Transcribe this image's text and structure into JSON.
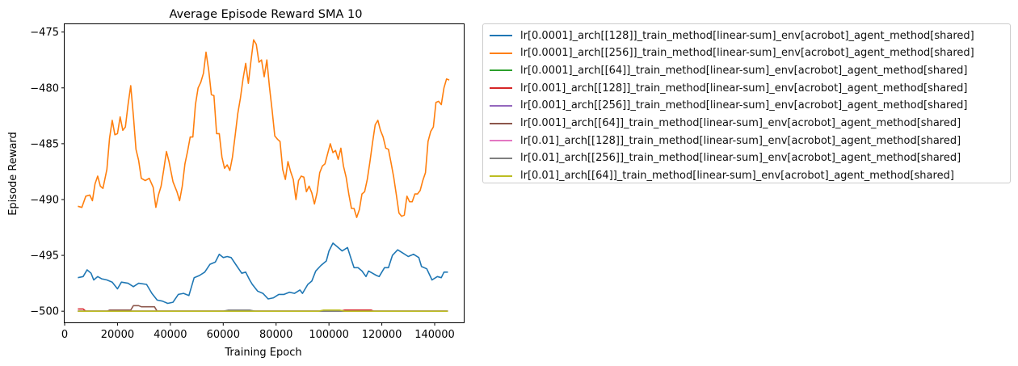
{
  "chart_data": {
    "type": "line",
    "title": "Average Episode Reward SMA 10",
    "xlabel": "Training Epoch",
    "ylabel": "Episode Reward",
    "xlim": [
      0,
      151000
    ],
    "ylim": [
      -501.0,
      -474.3
    ],
    "xticks": [
      0,
      20000,
      40000,
      60000,
      80000,
      100000,
      120000,
      140000
    ],
    "yticks": [
      -500,
      -495,
      -490,
      -485,
      -480,
      -475
    ],
    "grid": false,
    "legend_position": "outside-right-top",
    "series": [
      {
        "name": "lr[0.0001]_arch[[128]]_train_method[linear-sum]_env[acrobot]_agent_method[shared]",
        "color": "#1f77b4",
        "points": [
          [
            5000,
            -497
          ],
          [
            7000,
            -496.9
          ],
          [
            8500,
            -496.3
          ],
          [
            10000,
            -496.6
          ],
          [
            11000,
            -497.2
          ],
          [
            12500,
            -496.9
          ],
          [
            14000,
            -497.1
          ],
          [
            16000,
            -497.2
          ],
          [
            18000,
            -497.4
          ],
          [
            20000,
            -498
          ],
          [
            21500,
            -497.4
          ],
          [
            24000,
            -497.5
          ],
          [
            26000,
            -497.8
          ],
          [
            28000,
            -497.5
          ],
          [
            31000,
            -497.6
          ],
          [
            33000,
            -498.4
          ],
          [
            35000,
            -499
          ],
          [
            37000,
            -499.1
          ],
          [
            39000,
            -499.3
          ],
          [
            41000,
            -499.2
          ],
          [
            43000,
            -498.5
          ],
          [
            45000,
            -498.4
          ],
          [
            47000,
            -498.6
          ],
          [
            49000,
            -497
          ],
          [
            51000,
            -496.8
          ],
          [
            53000,
            -496.5
          ],
          [
            55000,
            -495.8
          ],
          [
            57000,
            -495.6
          ],
          [
            58500,
            -494.9
          ],
          [
            60000,
            -495.2
          ],
          [
            61500,
            -495.1
          ],
          [
            63000,
            -495.2
          ],
          [
            65000,
            -495.9
          ],
          [
            67000,
            -496.6
          ],
          [
            68500,
            -496.5
          ],
          [
            70000,
            -497.2
          ],
          [
            71000,
            -497.6
          ],
          [
            73000,
            -498.2
          ],
          [
            75000,
            -498.4
          ],
          [
            77000,
            -498.9
          ],
          [
            79000,
            -498.8
          ],
          [
            81000,
            -498.5
          ],
          [
            83000,
            -498.5
          ],
          [
            85000,
            -498.3
          ],
          [
            87000,
            -498.4
          ],
          [
            89000,
            -498.1
          ],
          [
            90000,
            -498.4
          ],
          [
            92000,
            -497.6
          ],
          [
            93500,
            -497.3
          ],
          [
            95000,
            -496.4
          ],
          [
            97000,
            -495.9
          ],
          [
            99000,
            -495.5
          ],
          [
            100000,
            -494.6
          ],
          [
            101500,
            -493.9
          ],
          [
            103000,
            -494.2
          ],
          [
            105000,
            -494.6
          ],
          [
            107000,
            -494.3
          ],
          [
            108500,
            -495.4
          ],
          [
            109500,
            -496.1
          ],
          [
            111000,
            -496.1
          ],
          [
            112500,
            -496.4
          ],
          [
            114000,
            -496.9
          ],
          [
            115000,
            -496.4
          ],
          [
            116500,
            -496.6
          ],
          [
            118000,
            -496.8
          ],
          [
            119000,
            -496.9
          ],
          [
            121000,
            -496.1
          ],
          [
            122500,
            -496.1
          ],
          [
            124000,
            -495
          ],
          [
            126000,
            -494.5
          ],
          [
            128000,
            -494.8
          ],
          [
            130000,
            -495.1
          ],
          [
            132000,
            -494.9
          ],
          [
            134000,
            -495.2
          ],
          [
            135000,
            -496
          ],
          [
            137000,
            -496.2
          ],
          [
            139000,
            -497.2
          ],
          [
            141000,
            -496.9
          ],
          [
            142500,
            -497
          ],
          [
            143500,
            -496.5
          ],
          [
            145000,
            -496.5
          ]
        ]
      },
      {
        "name": "lr[0.0001]_arch[[256]]_train_method[linear-sum]_env[acrobot]_agent_method[shared]",
        "color": "#ff7f0e",
        "points": [
          [
            5000,
            -490.6
          ],
          [
            6500,
            -490.7
          ],
          [
            8000,
            -489.7
          ],
          [
            9500,
            -489.6
          ],
          [
            10500,
            -490.1
          ],
          [
            11500,
            -488.6
          ],
          [
            12500,
            -487.9
          ],
          [
            13500,
            -488.8
          ],
          [
            14500,
            -489
          ],
          [
            16000,
            -487.3
          ],
          [
            17000,
            -484.5
          ],
          [
            18000,
            -482.9
          ],
          [
            19000,
            -484.2
          ],
          [
            20000,
            -484.1
          ],
          [
            21000,
            -482.6
          ],
          [
            22000,
            -483.8
          ],
          [
            23000,
            -483.5
          ],
          [
            24000,
            -481.5
          ],
          [
            25000,
            -479.8
          ],
          [
            26000,
            -482.5
          ],
          [
            27000,
            -485.5
          ],
          [
            28000,
            -486.5
          ],
          [
            29000,
            -488.1
          ],
          [
            30500,
            -488.3
          ],
          [
            32000,
            -488.1
          ],
          [
            33500,
            -488.9
          ],
          [
            34500,
            -490.7
          ],
          [
            35500,
            -489.6
          ],
          [
            36500,
            -488.8
          ],
          [
            37500,
            -487.3
          ],
          [
            38500,
            -485.7
          ],
          [
            39500,
            -486.6
          ],
          [
            41000,
            -488.4
          ],
          [
            42500,
            -489.3
          ],
          [
            43500,
            -490.1
          ],
          [
            44500,
            -488.8
          ],
          [
            45500,
            -486.8
          ],
          [
            46500,
            -485.7
          ],
          [
            47500,
            -484.4
          ],
          [
            48500,
            -484.4
          ],
          [
            49500,
            -481.5
          ],
          [
            50500,
            -480.0
          ],
          [
            51500,
            -479.5
          ],
          [
            52500,
            -478.7
          ],
          [
            53500,
            -476.8
          ],
          [
            54500,
            -478.4
          ],
          [
            55500,
            -480.6
          ],
          [
            56500,
            -480.7
          ],
          [
            57500,
            -484.1
          ],
          [
            58500,
            -484.1
          ],
          [
            59500,
            -486.2
          ],
          [
            60500,
            -487.2
          ],
          [
            61500,
            -486.9
          ],
          [
            62500,
            -487.4
          ],
          [
            63500,
            -486.2
          ],
          [
            64500,
            -484.3
          ],
          [
            65500,
            -482.3
          ],
          [
            66500,
            -480.9
          ],
          [
            67500,
            -479.2
          ],
          [
            68500,
            -477.8
          ],
          [
            69500,
            -479.6
          ],
          [
            70500,
            -477.6
          ],
          [
            71500,
            -475.7
          ],
          [
            72500,
            -476.1
          ],
          [
            73500,
            -477.7
          ],
          [
            74500,
            -477.5
          ],
          [
            75500,
            -479.0
          ],
          [
            76500,
            -477.5
          ],
          [
            77500,
            -479.9
          ],
          [
            78500,
            -482.0
          ],
          [
            79500,
            -484.3
          ],
          [
            80500,
            -484.6
          ],
          [
            81500,
            -484.8
          ],
          [
            82500,
            -487.3
          ],
          [
            83500,
            -488.2
          ],
          [
            84500,
            -486.6
          ],
          [
            85500,
            -487.5
          ],
          [
            86500,
            -488.2
          ],
          [
            87500,
            -490.0
          ],
          [
            88500,
            -488.3
          ],
          [
            89500,
            -487.9
          ],
          [
            90500,
            -488.0
          ],
          [
            91500,
            -489.3
          ],
          [
            92500,
            -488.8
          ],
          [
            93500,
            -489.4
          ],
          [
            94500,
            -490.4
          ],
          [
            95500,
            -489.4
          ],
          [
            96500,
            -487.6
          ],
          [
            97500,
            -487.0
          ],
          [
            98500,
            -486.8
          ],
          [
            99500,
            -485.9
          ],
          [
            100500,
            -485.0
          ],
          [
            101500,
            -485.8
          ],
          [
            102500,
            -485.6
          ],
          [
            103500,
            -486.4
          ],
          [
            104500,
            -485.4
          ],
          [
            105500,
            -487.0
          ],
          [
            106500,
            -488.0
          ],
          [
            107500,
            -489.5
          ],
          [
            108500,
            -490.8
          ],
          [
            109500,
            -490.8
          ],
          [
            110500,
            -491.6
          ],
          [
            111500,
            -490.9
          ],
          [
            112500,
            -489.5
          ],
          [
            113500,
            -489.3
          ],
          [
            114500,
            -488.2
          ],
          [
            115500,
            -486.6
          ],
          [
            116500,
            -484.9
          ],
          [
            117500,
            -483.3
          ],
          [
            118500,
            -482.9
          ],
          [
            119500,
            -483.8
          ],
          [
            120500,
            -484.4
          ],
          [
            121500,
            -485.4
          ],
          [
            122500,
            -485.5
          ],
          [
            123500,
            -486.7
          ],
          [
            124500,
            -488.0
          ],
          [
            125500,
            -489.6
          ],
          [
            126500,
            -491.2
          ],
          [
            127500,
            -491.5
          ],
          [
            128500,
            -491.4
          ],
          [
            129500,
            -489.7
          ],
          [
            130500,
            -490.2
          ],
          [
            131500,
            -490.2
          ],
          [
            132500,
            -489.5
          ],
          [
            133500,
            -489.5
          ],
          [
            134500,
            -489.2
          ],
          [
            135500,
            -488.3
          ],
          [
            136500,
            -487.6
          ],
          [
            137500,
            -484.8
          ],
          [
            138500,
            -483.9
          ],
          [
            139500,
            -483.5
          ],
          [
            140500,
            -481.3
          ],
          [
            141500,
            -481.2
          ],
          [
            142500,
            -481.5
          ],
          [
            143500,
            -480.0
          ],
          [
            144500,
            -479.2
          ],
          [
            145500,
            -479.3
          ]
        ]
      },
      {
        "name": "lr[0.0001]_arch[[64]]_train_method[linear-sum]_env[acrobot]_agent_method[shared]",
        "color": "#2ca02c",
        "points": [
          [
            5000,
            -500
          ],
          [
            145000,
            -500
          ]
        ]
      },
      {
        "name": "lr[0.001]_arch[[128]]_train_method[linear-sum]_env[acrobot]_agent_method[shared]",
        "color": "#d62728",
        "points": [
          [
            5000,
            -499.8
          ],
          [
            7000,
            -499.8
          ],
          [
            8000,
            -500
          ],
          [
            104000,
            -500
          ],
          [
            106000,
            -499.9
          ],
          [
            116000,
            -499.9
          ],
          [
            117000,
            -500
          ],
          [
            145000,
            -500
          ]
        ]
      },
      {
        "name": "lr[0.001]_arch[[256]]_train_method[linear-sum]_env[acrobot]_agent_method[shared]",
        "color": "#9467bd",
        "points": [
          [
            5000,
            -500
          ],
          [
            145000,
            -500
          ]
        ]
      },
      {
        "name": "lr[0.001]_arch[[64]]_train_method[linear-sum]_env[acrobot]_agent_method[shared]",
        "color": "#8c564b",
        "points": [
          [
            5000,
            -500
          ],
          [
            16000,
            -500
          ],
          [
            17000,
            -499.9
          ],
          [
            25000,
            -499.9
          ],
          [
            26000,
            -499.5
          ],
          [
            28000,
            -499.5
          ],
          [
            29000,
            -499.6
          ],
          [
            34000,
            -499.6
          ],
          [
            35000,
            -500
          ],
          [
            145000,
            -500
          ]
        ]
      },
      {
        "name": "lr[0.01]_arch[[128]]_train_method[linear-sum]_env[acrobot]_agent_method[shared]",
        "color": "#e377c2",
        "points": [
          [
            5000,
            -500
          ],
          [
            145000,
            -500
          ]
        ]
      },
      {
        "name": "lr[0.01]_arch[[256]]_train_method[linear-sum]_env[acrobot]_agent_method[shared]",
        "color": "#7f7f7f",
        "points": [
          [
            5000,
            -500
          ],
          [
            60000,
            -500
          ],
          [
            62000,
            -499.9
          ],
          [
            70000,
            -499.9
          ],
          [
            72000,
            -500
          ],
          [
            145000,
            -500
          ]
        ]
      },
      {
        "name": "lr[0.01]_arch[[64]]_train_method[linear-sum]_env[acrobot]_agent_method[shared]",
        "color": "#bcbd22",
        "points": [
          [
            5000,
            -500
          ],
          [
            96000,
            -500
          ],
          [
            98000,
            -499.9
          ],
          [
            104000,
            -499.9
          ],
          [
            106000,
            -500
          ],
          [
            145000,
            -500
          ]
        ]
      }
    ]
  }
}
